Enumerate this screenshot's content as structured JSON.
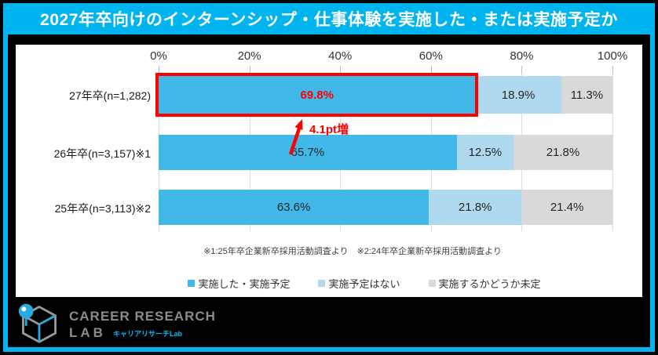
{
  "title": "2027年卒向けのインターンシップ・仕事体験を実施した・または実施予定か",
  "colors": {
    "accent_cyan": "#00B4EF",
    "bar_blue": "#41B8E8",
    "bar_light_blue": "#AFD9EE",
    "bar_gray": "#D9D9D9",
    "highlight_red": "#FF0000"
  },
  "chart_data": {
    "type": "bar",
    "orientation": "horizontal",
    "stacked": true,
    "xlim": [
      0,
      100
    ],
    "x_ticks": [
      "0%",
      "20%",
      "40%",
      "60%",
      "80%",
      "100%"
    ],
    "grid": true,
    "legend_position": "bottom",
    "categories": [
      "27年卒(n=1,282)",
      "26年卒(n=3,157)※1",
      "25年卒(n=3,113)※2"
    ],
    "series": [
      {
        "name": "実施した・実施予定",
        "color": "#41B8E8",
        "values": [
          69.8,
          65.7,
          63.6
        ]
      },
      {
        "name": "実施予定はない",
        "color": "#AFD9EE",
        "values": [
          18.9,
          12.5,
          21.8
        ]
      },
      {
        "name": "実施するかどうか未定",
        "color": "#D9D9D9",
        "values": [
          11.3,
          21.8,
          21.4
        ]
      }
    ],
    "value_suffix": "%",
    "highlight": {
      "row": 0,
      "segment": 0
    },
    "annotation": "4.1pt増"
  },
  "footnote": "※1:25年卒企業新卒採用活動調査より　※2:24年卒企業新卒採用活動調査より",
  "footer": {
    "logo_line1": "CAREER RESEARCH",
    "logo_line2": "LAB",
    "logo_sub": "キャリアリサーチLab"
  }
}
